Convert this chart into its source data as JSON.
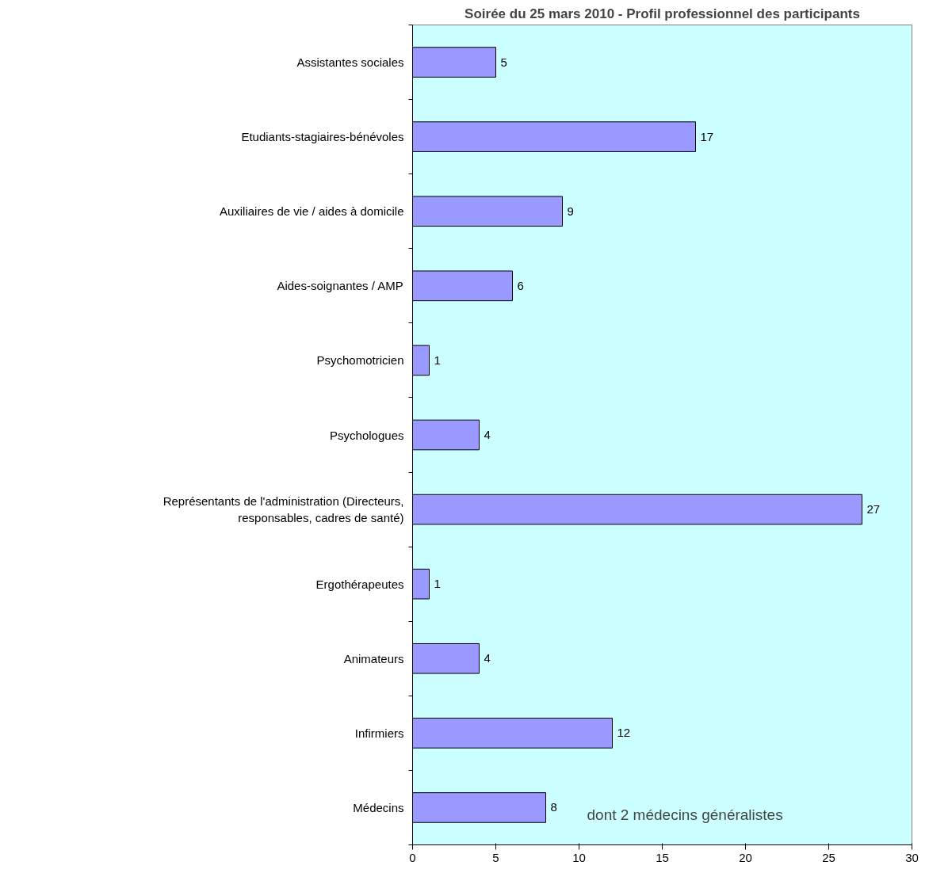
{
  "chart_data": {
    "type": "bar",
    "orientation": "horizontal",
    "title": "Soirée du 25 mars 2010 - Profil professionnel des participants",
    "categories": [
      "Assistantes sociales",
      "Etudiants-stagiaires-bénévoles",
      "Auxiliaires de vie / aides à domicile",
      "Aides-soignantes / AMP",
      "Psychomotricien",
      "Psychologues",
      "Représentants de l'administration (Directeurs, responsables, cadres de santé)",
      "Ergothérapeutes",
      "Animateurs",
      "Infirmiers",
      "Médecins"
    ],
    "values": [
      5,
      17,
      9,
      6,
      1,
      4,
      27,
      1,
      4,
      12,
      8
    ],
    "color": "#9999ff",
    "xlim": [
      0,
      30
    ],
    "xticks": [
      0,
      5,
      10,
      15,
      20,
      25,
      30
    ],
    "data_labels": true,
    "grid": false,
    "annotations": [
      "dont 2 médecins généralistes"
    ]
  }
}
